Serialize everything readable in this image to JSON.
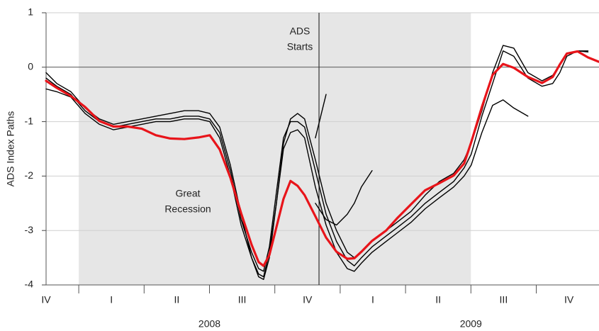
{
  "chart_data": {
    "type": "line",
    "ylabel": "ADS Index Paths",
    "xlim": [
      2007.875,
      2009.99
    ],
    "ylim": [
      -4,
      1
    ],
    "yticks": [
      -4,
      -3,
      -2,
      -1,
      0,
      1
    ],
    "grid": true,
    "shade": [
      2008.0,
      2009.5
    ],
    "shade_color": "#e6e6e6",
    "vline": 2008.919,
    "annotations": [
      [
        "Great",
        "Recession"
      ],
      [
        "ADS",
        "Starts"
      ]
    ],
    "quarter_labels": [
      {
        "value": 2007.875,
        "label": "IV"
      },
      {
        "value": 2008.125,
        "label": "I"
      },
      {
        "value": 2008.375,
        "label": "II"
      },
      {
        "value": 2008.625,
        "label": "III"
      },
      {
        "value": 2008.875,
        "label": "IV"
      },
      {
        "value": 2009.125,
        "label": "I"
      },
      {
        "value": 2009.375,
        "label": "II"
      },
      {
        "value": 2009.625,
        "label": "III"
      },
      {
        "value": 2009.875,
        "label": "IV"
      }
    ],
    "year_labels": [
      {
        "value": 2008.5,
        "label": "2008"
      },
      {
        "value": 2009.5,
        "label": "2009"
      }
    ],
    "x": [
      2007.875,
      2007.916,
      2007.97,
      2008.024,
      2008.079,
      2008.133,
      2008.187,
      2008.241,
      2008.295,
      2008.35,
      2008.404,
      2008.458,
      2008.501,
      2008.539,
      2008.58,
      2008.621,
      2008.661,
      2008.688,
      2008.707,
      2008.729,
      2008.756,
      2008.783,
      2008.81,
      2008.837,
      2008.864,
      2008.905,
      2008.946,
      2008.986,
      2009.027,
      2009.054,
      2009.081,
      2009.122,
      2009.176,
      2009.217,
      2009.271,
      2009.325,
      2009.379,
      2009.434,
      2009.474,
      2009.501,
      2009.542,
      2009.583,
      2009.623,
      2009.664,
      2009.718,
      2009.772,
      2009.813,
      2009.84,
      2009.867,
      2009.908,
      2009.948,
      2009.989
    ],
    "series": [
      {
        "color": "#000000",
        "values": [
          -0.1,
          -0.3,
          -0.45,
          -0.75,
          -0.95,
          -1.05,
          -1.0,
          -0.95,
          -0.9,
          -0.85,
          -0.8,
          -0.8,
          -0.85,
          -1.1,
          -1.8,
          -2.7,
          -3.5,
          -3.85,
          -3.9,
          -3.5,
          -2.5,
          -1.4,
          -0.95,
          -0.85,
          -0.95,
          -1.7,
          -2.5,
          -3.0,
          -3.4,
          -3.5,
          -3.4,
          -3.2,
          -3.0,
          -2.85,
          -2.65,
          -2.35,
          -2.1,
          -1.95,
          -1.7,
          -1.4,
          -0.8,
          -0.1,
          0.4,
          0.35,
          -0.1,
          -0.25,
          -0.15,
          0.05,
          0.25,
          0.3,
          0.3,
          null
        ]
      },
      {
        "color": "#000000",
        "values": [
          -0.2,
          -0.35,
          -0.5,
          -0.8,
          -1.0,
          -1.1,
          -1.05,
          -1.0,
          -0.95,
          -0.95,
          -0.9,
          -0.9,
          -0.95,
          -1.2,
          -1.9,
          -2.8,
          -3.4,
          -3.7,
          -3.75,
          -3.3,
          -2.3,
          -1.3,
          -1.0,
          -1.0,
          -1.1,
          -1.9,
          -2.7,
          -3.2,
          -3.55,
          -3.65,
          -3.5,
          -3.3,
          -3.1,
          -2.95,
          -2.75,
          -2.5,
          -2.3,
          -2.1,
          -1.85,
          -1.6,
          -0.9,
          -0.3,
          0.3,
          0.2,
          -0.2,
          -0.35,
          -0.3,
          -0.1,
          0.2,
          0.3,
          0.28,
          null
        ]
      },
      {
        "color": "#000000",
        "values": [
          -0.4,
          -0.45,
          -0.55,
          -0.85,
          -1.05,
          -1.15,
          -1.1,
          -1.05,
          -1.0,
          -1.0,
          -0.95,
          -0.95,
          -1.0,
          -1.3,
          -2.0,
          -2.9,
          -3.5,
          -3.8,
          -3.85,
          -3.4,
          -2.5,
          -1.5,
          -1.2,
          -1.15,
          -1.3,
          -2.2,
          -2.9,
          -3.4,
          -3.7,
          -3.75,
          -3.6,
          -3.4,
          -3.2,
          -3.05,
          -2.85,
          -2.6,
          -2.4,
          -2.2,
          -2.0,
          -1.8,
          -1.2,
          -0.7,
          -0.6,
          -0.75,
          -0.9,
          null,
          null,
          null,
          null,
          null,
          null,
          null
        ]
      },
      {
        "color": "#000000",
        "values": [
          null,
          null,
          null,
          null,
          null,
          null,
          null,
          null,
          null,
          null,
          null,
          null,
          null,
          null,
          null,
          null,
          null,
          null,
          null,
          null,
          null,
          null,
          null,
          null,
          null,
          -1.3,
          -0.5,
          null,
          null,
          null,
          null,
          null,
          null,
          null,
          null,
          null,
          null,
          null,
          null,
          null,
          null,
          null,
          null,
          null,
          null,
          null,
          null,
          null,
          null,
          null,
          null,
          null
        ]
      },
      {
        "color": "#000000",
        "values": [
          null,
          null,
          null,
          null,
          null,
          null,
          null,
          null,
          null,
          null,
          null,
          null,
          null,
          null,
          null,
          null,
          null,
          null,
          null,
          null,
          null,
          null,
          null,
          null,
          null,
          -2.5,
          -2.8,
          -2.9,
          -2.7,
          -2.5,
          -2.2,
          -1.9,
          null,
          null,
          null,
          null,
          null,
          null,
          null,
          null,
          null,
          null,
          null,
          null,
          null,
          null,
          null,
          null,
          null,
          null,
          null,
          null
        ]
      },
      {
        "color": "#e8141a",
        "values": [
          -0.25,
          -0.38,
          -0.53,
          -0.73,
          -0.99,
          -1.09,
          -1.09,
          -1.13,
          -1.25,
          -1.31,
          -1.32,
          -1.29,
          -1.25,
          -1.51,
          -2.03,
          -2.68,
          -3.26,
          -3.58,
          -3.65,
          -3.45,
          -2.94,
          -2.42,
          -2.09,
          -2.18,
          -2.35,
          -2.74,
          -3.13,
          -3.39,
          -3.52,
          -3.51,
          -3.39,
          -3.19,
          -3.0,
          -2.78,
          -2.52,
          -2.26,
          -2.13,
          -1.99,
          -1.77,
          -1.38,
          -0.73,
          -0.14,
          0.06,
          -0.01,
          -0.18,
          -0.29,
          -0.18,
          0.05,
          0.25,
          0.29,
          0.18,
          0.1
        ]
      }
    ]
  }
}
